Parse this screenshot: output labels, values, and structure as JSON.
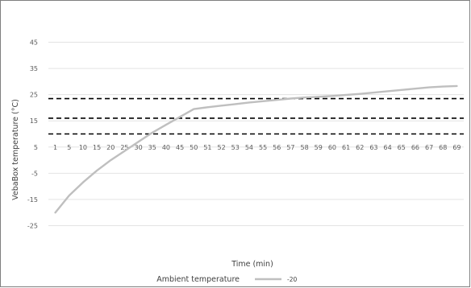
{
  "chart_data": {
    "type": "line",
    "title": "",
    "xlabel": "Time (min)",
    "ylabel": "VebaBox temperature (°C)",
    "ytick_labels": [
      "45",
      "35",
      "25",
      "15",
      "5",
      "-5",
      "-15",
      "-25"
    ],
    "ylim": [
      -35,
      55
    ],
    "categories": [
      "1",
      "5",
      "10",
      "15",
      "20",
      "25",
      "30",
      "35",
      "40",
      "45",
      "50",
      "51",
      "52",
      "53",
      "54",
      "55",
      "56",
      "57",
      "58",
      "59",
      "60",
      "61",
      "62",
      "63",
      "64",
      "65",
      "66",
      "67",
      "68",
      "69"
    ],
    "series": [
      {
        "name": "-20",
        "color": "#bfbfbf",
        "values": [
          -20,
          -13.5,
          -8.5,
          -4,
          0,
          3.5,
          7,
          10.5,
          13.5,
          16.5,
          19.5,
          20.2,
          20.8,
          21.4,
          22,
          22.5,
          23,
          23.5,
          23.9,
          24.2,
          24.5,
          24.9,
          25.3,
          25.8,
          26.3,
          26.8,
          27.3,
          27.8,
          28.1,
          28.3
        ]
      }
    ],
    "reference_lines": [
      {
        "y": 23.5,
        "style": "dashed",
        "color": "#000000"
      },
      {
        "y": 16,
        "style": "dashed",
        "color": "#000000"
      },
      {
        "y": 10,
        "style": "dashed",
        "color": "#000000"
      }
    ],
    "x_axis_crosses_at": 5,
    "grid": true,
    "legend": {
      "placement": "bottom",
      "title": "Ambient temperature",
      "items": [
        {
          "label": "-20",
          "color": "#bfbfbf"
        }
      ]
    }
  }
}
